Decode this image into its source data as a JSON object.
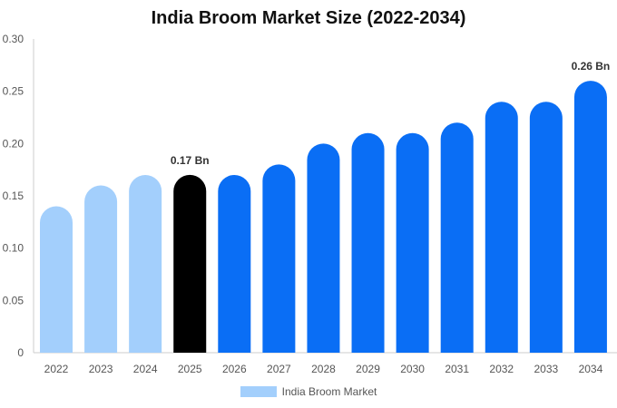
{
  "chart_data": {
    "type": "bar",
    "title": "India Broom Market Size (2022-2034)",
    "categories": [
      "2022",
      "2023",
      "2024",
      "2025",
      "2026",
      "2027",
      "2028",
      "2029",
      "2030",
      "2031",
      "2032",
      "2033",
      "2034"
    ],
    "series": [
      {
        "name": "India Broom Market",
        "values": [
          0.14,
          0.16,
          0.17,
          0.17,
          0.17,
          0.18,
          0.2,
          0.21,
          0.21,
          0.22,
          0.24,
          0.24,
          0.26
        ]
      }
    ],
    "ylim": [
      0,
      0.3
    ],
    "yticks": [
      "0",
      "0.05",
      "0.10",
      "0.15",
      "0.20",
      "0.25",
      "0.30"
    ],
    "data_labels": [
      {
        "category": "2025",
        "text": "0.17 Bn"
      },
      {
        "category": "2034",
        "text": "0.26 Bn"
      }
    ],
    "colors": {
      "historical": "#a3cffc",
      "current": "#000000",
      "forecast": "#0a6ef5"
    },
    "bar_color_groups": [
      "historical",
      "historical",
      "historical",
      "current",
      "forecast",
      "forecast",
      "forecast",
      "forecast",
      "forecast",
      "forecast",
      "forecast",
      "forecast",
      "forecast"
    ],
    "legend_position": "bottom",
    "grid": false
  }
}
